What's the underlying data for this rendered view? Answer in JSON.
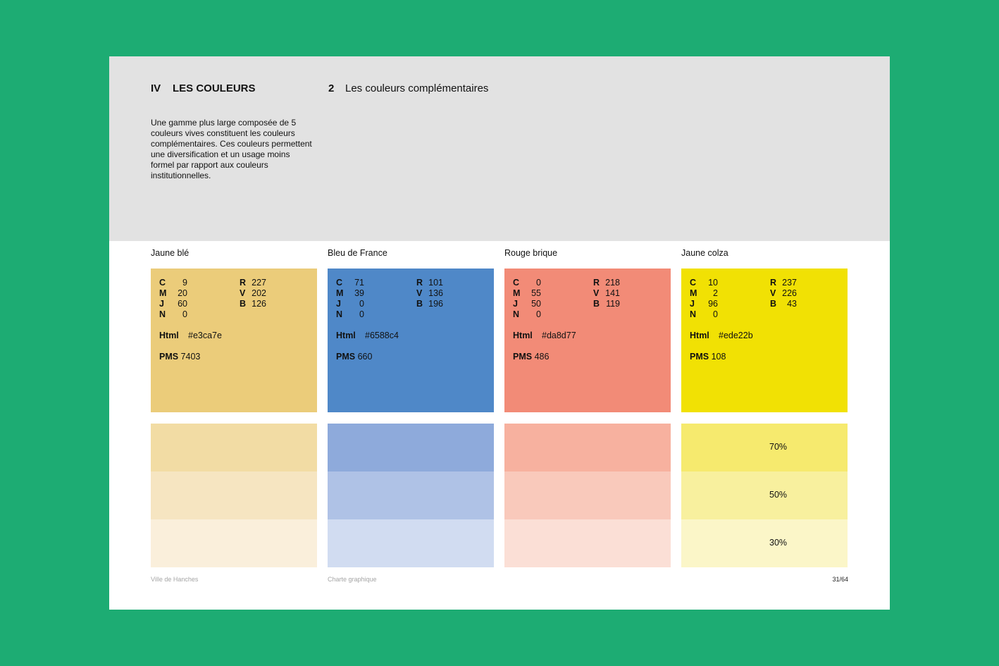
{
  "header": {
    "section_num": "IV",
    "section_title": "LES COULEURS",
    "sub_num": "2",
    "sub_title": "Les couleurs complémentaires",
    "intro": "Une gamme plus large composée de 5 couleurs vives constituent les couleurs complémentaires. Ces couleurs permettent une diversification et un usage moins formel par rapport aux couleurs institutionnelles."
  },
  "colors": [
    {
      "name": "Jaune blé",
      "swatch_color": "#ebcc7a",
      "cmjn": {
        "C": "9",
        "M": "20",
        "J": "60",
        "N": "0"
      },
      "rvb": {
        "R": "227",
        "V": "202",
        "B": "126"
      },
      "html_label": "Html",
      "html": "#e3ca7e",
      "pms_label": "PMS",
      "pms": "7403",
      "tints": [
        {
          "color": "#f2dca4",
          "label": ""
        },
        {
          "color": "#f6e5c1",
          "label": ""
        },
        {
          "color": "#faefdb",
          "label": ""
        }
      ]
    },
    {
      "name": "Bleu de France",
      "swatch_color": "#4f88c8",
      "cmjn": {
        "C": "71",
        "M": "39",
        "J": "0",
        "N": "0"
      },
      "rvb": {
        "R": "101",
        "V": "136",
        "B": "196"
      },
      "html_label": "Html",
      "html": "#6588c4",
      "pms_label": "PMS",
      "pms": "660",
      "tints": [
        {
          "color": "#8eaadb",
          "label": ""
        },
        {
          "color": "#afc2e6",
          "label": ""
        },
        {
          "color": "#d1dcf1",
          "label": ""
        }
      ]
    },
    {
      "name": "Rouge brique",
      "swatch_color": "#f28b77",
      "cmjn": {
        "C": "0",
        "M": "55",
        "J": "50",
        "N": "0"
      },
      "rvb": {
        "R": "218",
        "V": "141",
        "B": "119"
      },
      "html_label": "Html",
      "html": "#da8d77",
      "pms_label": "PMS",
      "pms": "486",
      "tints": [
        {
          "color": "#f7b19f",
          "label": ""
        },
        {
          "color": "#f9c9bb",
          "label": ""
        },
        {
          "color": "#fbdfd6",
          "label": ""
        }
      ]
    },
    {
      "name": "Jaune colza",
      "swatch_color": "#f1e104",
      "cmjn": {
        "C": "10",
        "M": "2",
        "J": "96",
        "N": "0"
      },
      "rvb": {
        "R": "237",
        "V": "226",
        "B": "43"
      },
      "html_label": "Html",
      "html": "#ede22b",
      "pms_label": "PMS",
      "pms": "108",
      "tints": [
        {
          "color": "#f6ea6e",
          "label": "70%"
        },
        {
          "color": "#f8f09e",
          "label": "50%"
        },
        {
          "color": "#fbf6c8",
          "label": "30%"
        }
      ]
    }
  ],
  "footer": {
    "left": "Ville de Hanches",
    "center": "Charte graphique",
    "page": "31/64"
  }
}
